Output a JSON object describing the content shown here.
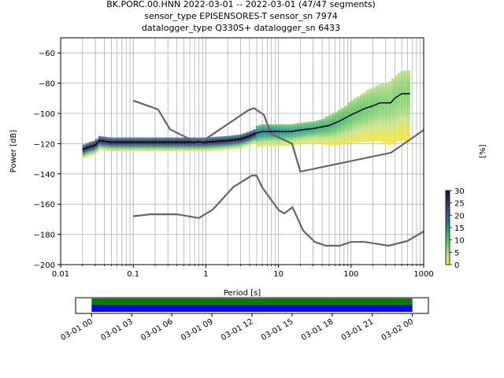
{
  "title_lines": [
    "BK.PORC.00.HNN   2022-03-01 -- 2022-03-01  (47/47 segments)",
    "sensor_type EPISENSORES-T sensor_sn 7974",
    "datalogger_type Q330S+ datalogger_sn 6433"
  ],
  "chart_data": [
    {
      "type": "heatmap",
      "xlabel": "Period [s]",
      "ylabel": "Power [dB]",
      "xscale": "log",
      "xlim": [
        0.01,
        1000
      ],
      "ylim": [
        -200,
        -50
      ],
      "xticks": [
        {
          "v": 0.01,
          "label": "0.01"
        },
        {
          "v": 0.1,
          "label": "0.1"
        },
        {
          "v": 1,
          "label": "1"
        },
        {
          "v": 10,
          "label": "10"
        },
        {
          "v": 100,
          "label": "100"
        },
        {
          "v": 1000,
          "label": "1000"
        }
      ],
      "yticks": [
        {
          "v": -60,
          "label": "−60"
        },
        {
          "v": -80,
          "label": "−80"
        },
        {
          "v": -100,
          "label": "−100"
        },
        {
          "v": -120,
          "label": "−120"
        },
        {
          "v": -140,
          "label": "−140"
        },
        {
          "v": -160,
          "label": "−160"
        },
        {
          "v": -180,
          "label": "−180"
        },
        {
          "v": -200,
          "label": "−200"
        }
      ],
      "grid": true,
      "colormap": "viridis_r (light green to dark purple)",
      "mode_line": [
        [
          0.02,
          -124
        ],
        [
          0.025,
          -122
        ],
        [
          0.03,
          -121
        ],
        [
          0.034,
          -118
        ],
        [
          0.05,
          -119
        ],
        [
          0.1,
          -119
        ],
        [
          0.3,
          -119
        ],
        [
          1,
          -119
        ],
        [
          2,
          -118
        ],
        [
          3,
          -117
        ],
        [
          4,
          -115
        ],
        [
          5,
          -113
        ],
        [
          6,
          -112
        ],
        [
          10,
          -112
        ],
        [
          15,
          -112
        ],
        [
          20,
          -111
        ],
        [
          30,
          -110
        ],
        [
          50,
          -108
        ],
        [
          70,
          -105
        ],
        [
          100,
          -101
        ],
        [
          150,
          -97
        ],
        [
          200,
          -95
        ],
        [
          250,
          -93
        ],
        [
          350,
          -93
        ],
        [
          400,
          -90
        ],
        [
          500,
          -87
        ],
        [
          650,
          -87
        ]
      ],
      "noise_models": {
        "nhnm": [
          [
            0.1,
            -91.5
          ],
          [
            0.22,
            -97.4
          ],
          [
            0.32,
            -110.5
          ],
          [
            0.8,
            -120
          ],
          [
            3.8,
            -98
          ],
          [
            4.6,
            -96.5
          ],
          [
            6.3,
            -101
          ],
          [
            7.9,
            -113.5
          ],
          [
            15.4,
            -120
          ],
          [
            20,
            -138.5
          ],
          [
            354.8,
            -126
          ],
          [
            1000,
            -111
          ]
        ],
        "nlnm": [
          [
            0.1,
            -168
          ],
          [
            0.17,
            -166.7
          ],
          [
            0.4,
            -166.7
          ],
          [
            0.8,
            -169.2
          ],
          [
            1.24,
            -163.7
          ],
          [
            2.4,
            -148.6
          ],
          [
            4.3,
            -141.1
          ],
          [
            5,
            -141.1
          ],
          [
            6,
            -149
          ],
          [
            10,
            -163.8
          ],
          [
            12,
            -166.2
          ],
          [
            15.6,
            -162.1
          ],
          [
            21.9,
            -177.5
          ],
          [
            31.6,
            -185
          ],
          [
            45,
            -187.5
          ],
          [
            70,
            -187.5
          ],
          [
            100,
            -185
          ],
          [
            154,
            -185
          ],
          [
            328,
            -187.5
          ],
          [
            600,
            -184.4
          ],
          [
            1000,
            -178
          ]
        ]
      },
      "colorbar": {
        "label": "[%]",
        "min": 0,
        "max": 30,
        "ticks": [
          {
            "v": 0,
            "label": "0"
          },
          {
            "v": 5,
            "label": "5"
          },
          {
            "v": 10,
            "label": "10"
          },
          {
            "v": 15,
            "label": "15"
          },
          {
            "v": 20,
            "label": "20"
          },
          {
            "v": 25,
            "label": "25"
          },
          {
            "v": 30,
            "label": "30"
          }
        ]
      }
    },
    {
      "type": "timeline",
      "xticks": [
        "03-01 00",
        "03-01 03",
        "03-01 06",
        "03-01 09",
        "03-01 12",
        "03-01 15",
        "03-01 18",
        "03-01 21",
        "03-02 00"
      ],
      "tick_hours": [
        0,
        3,
        6,
        9,
        12,
        15,
        18,
        21,
        24
      ],
      "xlim_hours": [
        -1.2,
        25.2
      ],
      "data_coverage_hours": [
        0,
        24
      ],
      "colors": {
        "data": "#008000",
        "segments": "#0000ff"
      }
    }
  ]
}
